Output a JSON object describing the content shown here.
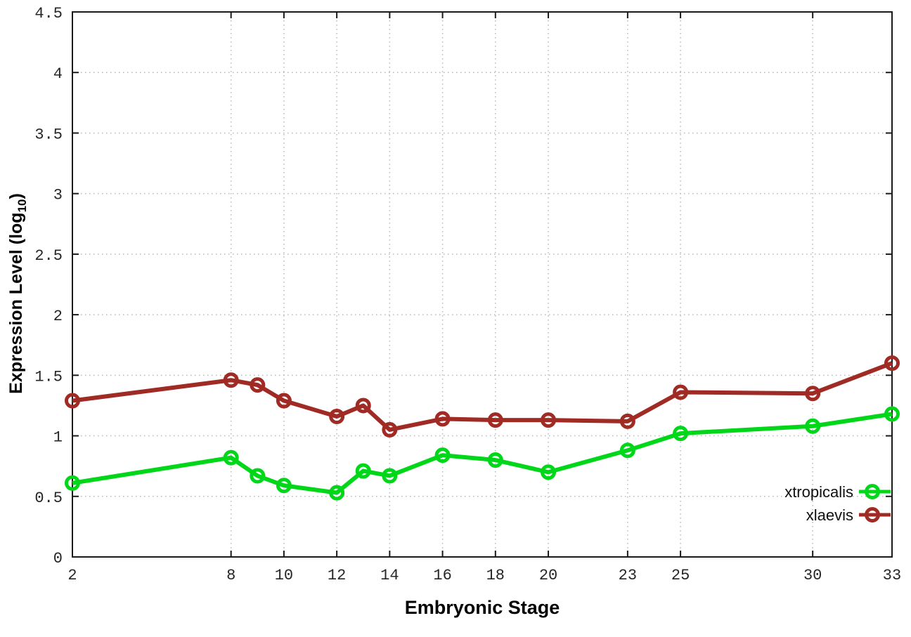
{
  "chart_data": {
    "type": "line",
    "title": "",
    "xlabel": "Embryonic Stage",
    "ylabel_main": "Expression Level (log",
    "ylabel_sub": "10",
    "ylabel_end": ")",
    "x": [
      2,
      8,
      9,
      10,
      12,
      13,
      14,
      16,
      18,
      20,
      23,
      25,
      30,
      33
    ],
    "series": [
      {
        "name": "xtropicalis",
        "color": "#00d718",
        "values": [
          0.61,
          0.82,
          0.67,
          0.59,
          0.53,
          0.71,
          0.67,
          0.84,
          0.8,
          0.7,
          0.88,
          1.02,
          1.08,
          1.18
        ]
      },
      {
        "name": "xlaevis",
        "color": "#a02a24",
        "values": [
          1.29,
          1.46,
          1.42,
          1.29,
          1.16,
          1.25,
          1.05,
          1.14,
          1.13,
          1.13,
          1.12,
          1.36,
          1.35,
          1.6
        ]
      }
    ],
    "x_ticks": [
      2,
      8,
      10,
      12,
      14,
      16,
      18,
      20,
      23,
      25,
      30,
      33
    ],
    "y_ticks": [
      "0",
      "0.5",
      "1",
      "1.5",
      "2",
      "2.5",
      "3",
      "3.5",
      "4",
      "4.5"
    ],
    "xlim": [
      2,
      33
    ],
    "ylim": [
      0,
      4.5
    ],
    "grid": true,
    "legend_position": "inside-bottom-right",
    "colors": {
      "border": "#1a1a1a",
      "grid": "#b8b8b8",
      "tick_label": "#262626"
    }
  }
}
